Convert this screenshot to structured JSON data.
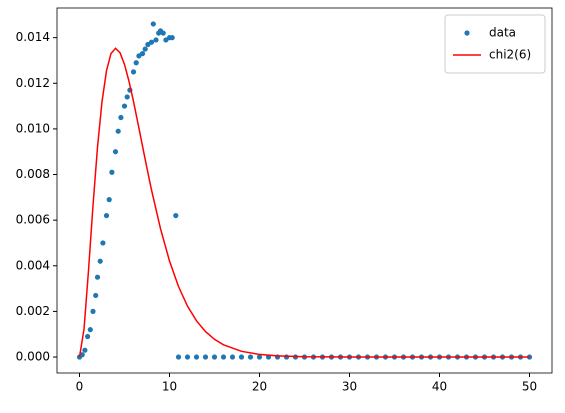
{
  "chart_data": {
    "type": "line",
    "xlim": [
      -2.5,
      52.5
    ],
    "xticks": [
      0,
      10,
      20,
      30,
      40,
      50
    ],
    "ylim": [
      -0.0007,
      0.0153
    ],
    "yticks": [
      {
        "value": 0,
        "label": "0.000"
      },
      {
        "value": 0.002,
        "label": "0.002"
      },
      {
        "value": 0.004,
        "label": "0.004"
      },
      {
        "value": 0.006,
        "label": "0.006"
      },
      {
        "value": 0.008,
        "label": "0.008"
      },
      {
        "value": 0.01,
        "label": "0.010"
      },
      {
        "value": 0.012,
        "label": "0.012"
      },
      {
        "value": 0.014,
        "label": "0.014"
      }
    ],
    "legend": "upper right",
    "series": [
      {
        "name": "data",
        "type": "scatter",
        "color": "#1f77b4",
        "x": [
          0,
          0.3,
          0.6,
          0.9,
          1.2,
          1.5,
          1.8,
          2,
          2.3,
          2.6,
          3,
          3.3,
          3.6,
          4,
          4.3,
          4.6,
          5,
          5.3,
          5.6,
          6,
          6.3,
          6.6,
          7,
          7.3,
          7.6,
          8,
          8.2,
          8.5,
          8.8,
          9,
          9.3,
          9.6,
          10,
          10.3,
          10.7,
          11,
          12,
          13,
          14,
          15,
          16,
          17,
          18,
          19,
          20,
          21,
          22,
          23,
          24,
          25,
          26,
          27,
          28,
          29,
          30,
          31,
          32,
          33,
          34,
          35,
          36,
          37,
          38,
          39,
          40,
          41,
          42,
          43,
          44,
          45,
          46,
          47,
          48,
          49,
          50
        ],
        "values": [
          0,
          0.0001,
          0.0003,
          0.0009,
          0.0012,
          0.002,
          0.0027,
          0.0035,
          0.0042,
          0.005,
          0.0062,
          0.0069,
          0.0081,
          0.009,
          0.0099,
          0.0105,
          0.011,
          0.0114,
          0.0117,
          0.0125,
          0.0129,
          0.0132,
          0.0133,
          0.0135,
          0.0137,
          0.0138,
          0.0146,
          0.0139,
          0.0142,
          0.0143,
          0.0142,
          0.0139,
          0.014,
          0.014,
          0.0062,
          0,
          0,
          0,
          0,
          0,
          0,
          0,
          0,
          0,
          0,
          0,
          0,
          0,
          0,
          0,
          0,
          0,
          0,
          0,
          0,
          0,
          0,
          0,
          0,
          0,
          0,
          0,
          0,
          0,
          0,
          0,
          0,
          0,
          0,
          0,
          0,
          0,
          0,
          0,
          0
        ]
      },
      {
        "name": "chi2(6)",
        "type": "line",
        "color": "#ff0000",
        "x": [
          0,
          0.5,
          1,
          1.5,
          2,
          2.5,
          3,
          3.5,
          4,
          4.5,
          5,
          5.5,
          6,
          6.5,
          7,
          7.5,
          8,
          9,
          10,
          11,
          12,
          13,
          14,
          15,
          16,
          18,
          20,
          22,
          25,
          30,
          40,
          50
        ],
        "values": [
          0,
          0.001217,
          0.003791,
          0.006643,
          0.009197,
          0.011192,
          0.012551,
          0.013306,
          0.013534,
          0.01334,
          0.012825,
          0.012087,
          0.011203,
          0.010238,
          0.009248,
          0.008269,
          0.007326,
          0.005625,
          0.004211,
          0.003091,
          0.002231,
          0.001588,
          0.001117,
          0.000778,
          0.000537,
          0.00025,
          0.000114,
          5.05e-05,
          1.46e-05,
          1.7e-06,
          0,
          0
        ]
      }
    ]
  }
}
